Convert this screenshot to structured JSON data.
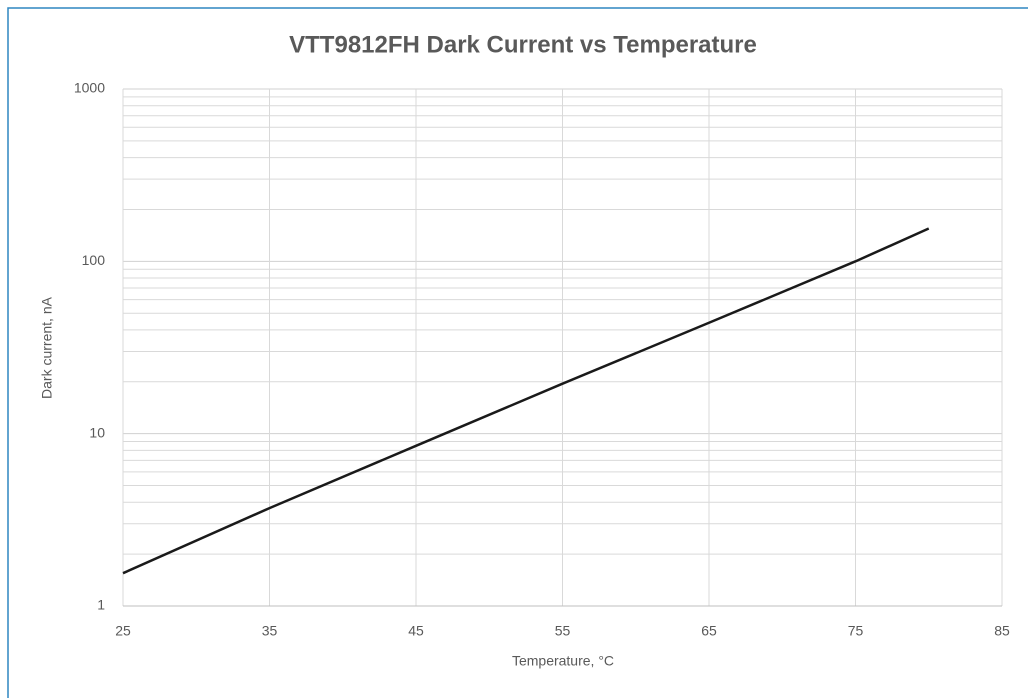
{
  "chart_data": {
    "type": "line",
    "title": "VTT9812FH Dark Current  vs Temperature",
    "xlabel": "Temperature, °C",
    "ylabel": "Dark current, nA",
    "x": [
      25,
      35,
      45,
      55,
      65,
      75,
      80
    ],
    "series": [
      {
        "name": "Dark current",
        "color": "#1a1a1a",
        "values": [
          1.55,
          3.7,
          8.5,
          19.5,
          44,
          100,
          155
        ]
      }
    ],
    "xlim": [
      25,
      85
    ],
    "xticks": [
      25,
      35,
      45,
      55,
      65,
      75,
      85
    ],
    "ylim": [
      1,
      1000
    ],
    "yticks": [
      1,
      10,
      100,
      1000
    ],
    "log_y": true,
    "grid": true,
    "minor_grid": true
  }
}
